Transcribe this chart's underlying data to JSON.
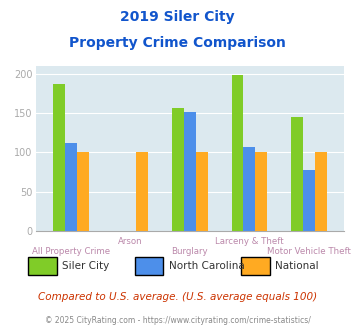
{
  "title_line1": "2019 Siler City",
  "title_line2": "Property Crime Comparison",
  "categories": [
    "All Property Crime",
    "Arson",
    "Burglary",
    "Larceny & Theft",
    "Motor Vehicle Theft"
  ],
  "xtick_row": [
    1,
    0,
    1,
    0,
    1
  ],
  "series": {
    "Siler City": [
      187,
      0,
      157,
      199,
      145
    ],
    "North Carolina": [
      112,
      0,
      152,
      107,
      78
    ],
    "National": [
      100,
      100,
      100,
      100,
      100
    ]
  },
  "colors": {
    "Siler City": "#80cc28",
    "North Carolina": "#4d8fea",
    "National": "#ffaa22"
  },
  "ylim": [
    0,
    210
  ],
  "yticks": [
    0,
    50,
    100,
    150,
    200
  ],
  "plot_bg": "#dce9ef",
  "title_color": "#1155cc",
  "subtitle_text": "Compared to U.S. average. (U.S. average equals 100)",
  "subtitle_color": "#cc3300",
  "footer_text": "© 2025 CityRating.com - https://www.cityrating.com/crime-statistics/",
  "footer_color": "#888888",
  "grid_color": "#ffffff",
  "tick_label_color": "#aaaaaa",
  "xtick_label_color": "#bb88aa"
}
